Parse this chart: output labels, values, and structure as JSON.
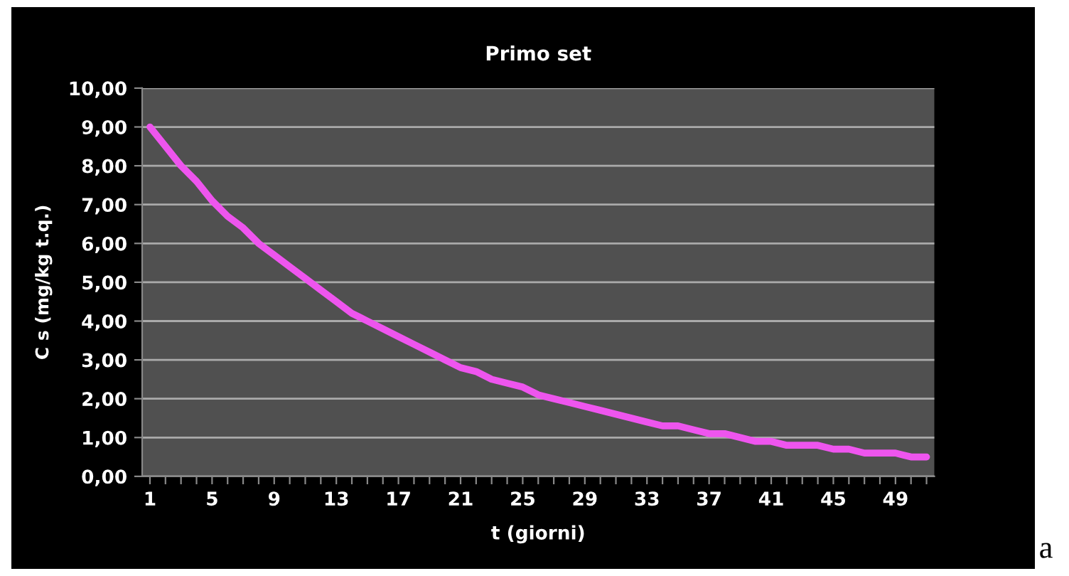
{
  "chart_data": {
    "type": "line",
    "title": "Primo set",
    "xlabel": "t (giorni)",
    "ylabel": "C s (mg/kg t.q.)",
    "categories": [
      "1",
      null,
      null,
      null,
      "5",
      null,
      null,
      null,
      "9",
      null,
      null,
      null,
      "13",
      null,
      null,
      null,
      "17",
      null,
      null,
      null,
      "21",
      null,
      null,
      null,
      "25",
      null,
      null,
      null,
      "29",
      null,
      null,
      null,
      "33",
      null,
      null,
      null,
      "37",
      null,
      null,
      null,
      "41",
      null,
      null,
      null,
      "45",
      null,
      null,
      null,
      "49",
      null,
      null
    ],
    "series": [
      {
        "color": "#ee55ee",
        "values": [
          9.0,
          8.5,
          8.0,
          7.6,
          7.1,
          6.7,
          6.4,
          6.0,
          5.7,
          5.4,
          5.1,
          4.8,
          4.5,
          4.2,
          4.0,
          3.8,
          3.6,
          3.4,
          3.2,
          3.0,
          2.8,
          2.7,
          2.5,
          2.4,
          2.3,
          2.1,
          2.0,
          1.9,
          1.8,
          1.7,
          1.6,
          1.5,
          1.4,
          1.3,
          1.3,
          1.2,
          1.1,
          1.1,
          1.0,
          0.9,
          0.9,
          0.8,
          0.8,
          0.8,
          0.7,
          0.7,
          0.6,
          0.6,
          0.6,
          0.5,
          0.5
        ]
      }
    ],
    "ylim": [
      0,
      10
    ],
    "yticks": [
      {
        "value": 0,
        "label": "0,00"
      },
      {
        "value": 1,
        "label": "1,00"
      },
      {
        "value": 2,
        "label": "2,00"
      },
      {
        "value": 3,
        "label": "3,00"
      },
      {
        "value": 4,
        "label": "4,00"
      },
      {
        "value": 5,
        "label": "5,00"
      },
      {
        "value": 6,
        "label": "6,00"
      },
      {
        "value": 7,
        "label": "7,00"
      },
      {
        "value": 8,
        "label": "8,00"
      },
      {
        "value": 9,
        "label": "9,00"
      },
      {
        "value": 10,
        "label": "10,00"
      }
    ],
    "grid": "y",
    "marker": "none",
    "line_style": "solid",
    "legend": false,
    "annotations": [
      "a"
    ]
  }
}
